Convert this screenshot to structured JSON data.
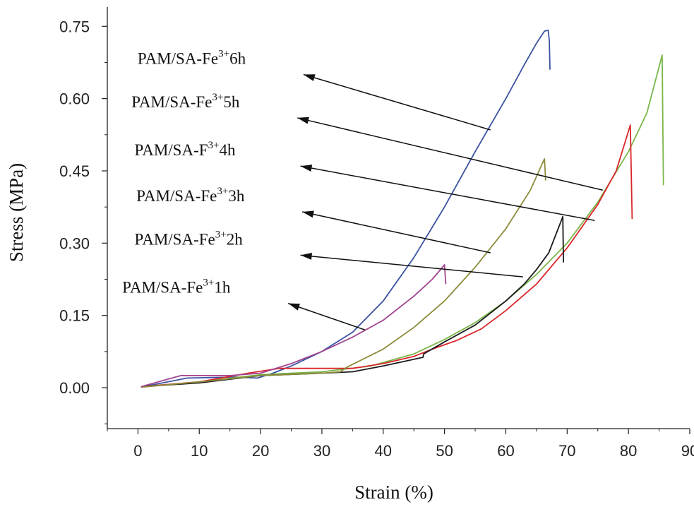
{
  "chart_data": {
    "type": "line",
    "title": "",
    "xlabel": "Strain (%)",
    "ylabel": "Stress (MPa)",
    "xlim": [
      -5,
      90
    ],
    "ylim": [
      -0.085,
      0.79
    ],
    "xticks": [
      0,
      10,
      20,
      30,
      40,
      50,
      60,
      70,
      80,
      90
    ],
    "xtick_labels": [
      "0",
      "10",
      "20",
      "30",
      "40",
      "50",
      "60",
      "70",
      "80",
      "90"
    ],
    "yticks": [
      0.0,
      0.15,
      0.3,
      0.45,
      0.6,
      0.75
    ],
    "ytick_labels": [
      "0.00",
      "0.15",
      "0.30",
      "0.45",
      "0.60",
      "0.75"
    ],
    "grid": false,
    "legend": "none",
    "series": [
      {
        "color": "#3a52a3",
        "points": [
          [
            0.5,
            0.001
          ],
          [
            8,
            0.02
          ],
          [
            16,
            0.022
          ],
          [
            19.5,
            0.02
          ],
          [
            22,
            0.03
          ],
          [
            25,
            0.045
          ],
          [
            30,
            0.075
          ],
          [
            35,
            0.115
          ],
          [
            40,
            0.18
          ],
          [
            45,
            0.27
          ],
          [
            50,
            0.375
          ],
          [
            55,
            0.49
          ],
          [
            60,
            0.6
          ],
          [
            63,
            0.67
          ],
          [
            65,
            0.715
          ],
          [
            66.3,
            0.74
          ],
          [
            66.9,
            0.742
          ],
          [
            67.1,
            0.72
          ],
          [
            67.2,
            0.66
          ]
        ]
      },
      {
        "color": "#7ab648",
        "points": [
          [
            0.5,
            0.002
          ],
          [
            10,
            0.012
          ],
          [
            20,
            0.027
          ],
          [
            30,
            0.033
          ],
          [
            38,
            0.045
          ],
          [
            45,
            0.07
          ],
          [
            50,
            0.1
          ],
          [
            55,
            0.135
          ],
          [
            60,
            0.18
          ],
          [
            65,
            0.235
          ],
          [
            70,
            0.3
          ],
          [
            75,
            0.385
          ],
          [
            80,
            0.49
          ],
          [
            83,
            0.57
          ],
          [
            85.5,
            0.69
          ],
          [
            85.7,
            0.42
          ]
        ]
      },
      {
        "color": "#d9262b",
        "points": [
          [
            0.5,
            0.002
          ],
          [
            10,
            0.012
          ],
          [
            18,
            0.03
          ],
          [
            23,
            0.04
          ],
          [
            30,
            0.04
          ],
          [
            35,
            0.04
          ],
          [
            40,
            0.05
          ],
          [
            45,
            0.065
          ],
          [
            48,
            0.08
          ],
          [
            52,
            0.098
          ],
          [
            56,
            0.122
          ],
          [
            60,
            0.16
          ],
          [
            65,
            0.215
          ],
          [
            70,
            0.29
          ],
          [
            75,
            0.38
          ],
          [
            78,
            0.45
          ],
          [
            80.3,
            0.545
          ],
          [
            80.6,
            0.35
          ]
        ]
      },
      {
        "color": "#1a1a1a",
        "points": [
          [
            0.5,
            0.002
          ],
          [
            10,
            0.01
          ],
          [
            20,
            0.025
          ],
          [
            30,
            0.03
          ],
          [
            35,
            0.033
          ],
          [
            40,
            0.045
          ],
          [
            46.5,
            0.063
          ],
          [
            46.6,
            0.07
          ],
          [
            50,
            0.095
          ],
          [
            55,
            0.13
          ],
          [
            60,
            0.18
          ],
          [
            63,
            0.215
          ],
          [
            65,
            0.245
          ],
          [
            67,
            0.28
          ],
          [
            69.3,
            0.355
          ],
          [
            69.4,
            0.26
          ]
        ]
      },
      {
        "color": "#8c8b3a",
        "points": [
          [
            0.5,
            0.001
          ],
          [
            10,
            0.012
          ],
          [
            20,
            0.025
          ],
          [
            30,
            0.03
          ],
          [
            33,
            0.033
          ],
          [
            34,
            0.042
          ],
          [
            40,
            0.08
          ],
          [
            45,
            0.125
          ],
          [
            50,
            0.18
          ],
          [
            55,
            0.25
          ],
          [
            60,
            0.33
          ],
          [
            64,
            0.41
          ],
          [
            66.3,
            0.475
          ],
          [
            66.5,
            0.43
          ]
        ]
      },
      {
        "color": "#a04590",
        "points": [
          [
            0.5,
            0.002
          ],
          [
            7,
            0.025
          ],
          [
            15,
            0.025
          ],
          [
            20,
            0.03
          ],
          [
            25,
            0.05
          ],
          [
            30,
            0.075
          ],
          [
            35,
            0.105
          ],
          [
            40,
            0.14
          ],
          [
            45,
            0.19
          ],
          [
            48,
            0.225
          ],
          [
            50,
            0.255
          ],
          [
            50.2,
            0.215
          ]
        ]
      }
    ],
    "annotations": [
      {
        "base": "PAM/SA-Fe",
        "sup": "3+",
        "suffix": "6h",
        "arrow_from": [
          57.5,
          0.535
        ],
        "arrow_to": [
          27,
          0.65
        ]
      },
      {
        "base": "PAM/SA-Fe",
        "sup": "3+",
        "suffix": "5h",
        "arrow_from": [
          75.8,
          0.41
        ],
        "arrow_to": [
          26,
          0.56
        ]
      },
      {
        "base": "PAM/SA-F",
        "sup": "3+",
        "suffix": "4h",
        "arrow_from": [
          74.5,
          0.347
        ],
        "arrow_to": [
          26.5,
          0.46
        ]
      },
      {
        "base": "PAM/SA-Fe",
        "sup": "3+",
        "suffix": "3h",
        "arrow_from": [
          57.5,
          0.28
        ],
        "arrow_to": [
          26.8,
          0.365
        ]
      },
      {
        "base": "PAM/SA-Fe",
        "sup": "3+",
        "suffix": "2h",
        "arrow_from": [
          62.8,
          0.23
        ],
        "arrow_to": [
          26.5,
          0.275
        ]
      },
      {
        "base": "PAM/SA-Fe",
        "sup": "3+",
        "suffix": "1h",
        "arrow_from": [
          37,
          0.12
        ],
        "arrow_to": [
          24.5,
          0.175
        ]
      }
    ]
  }
}
